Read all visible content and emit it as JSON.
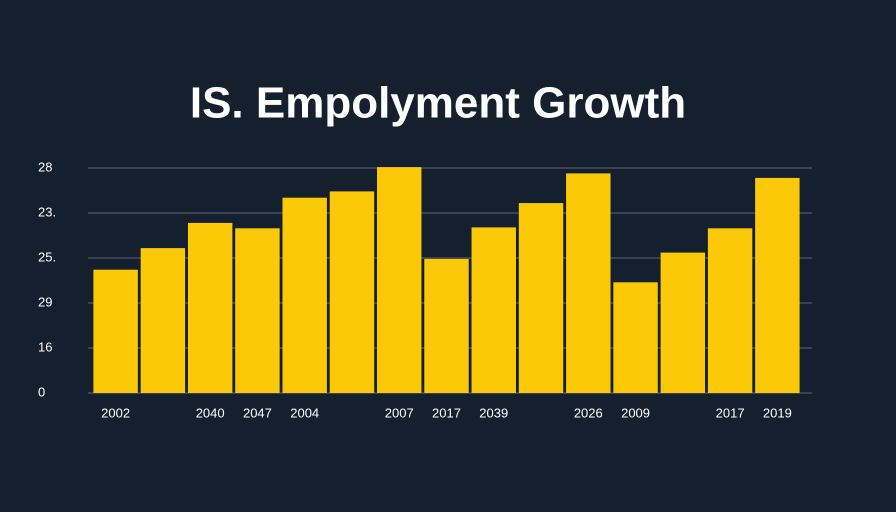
{
  "chart_data": {
    "type": "bar",
    "title": "IS. Empolyment Growth",
    "categories": [
      "2002",
      null,
      "2040",
      "2047",
      "2004",
      null,
      "2007",
      "2017",
      "2039",
      null,
      "2026",
      "2009",
      null,
      "2017",
      "2019"
    ],
    "values": [
      13.7,
      16.1,
      18.9,
      18.3,
      21.7,
      22.4,
      25.1,
      14.9,
      18.4,
      21.1,
      24.4,
      12.3,
      15.6,
      18.3,
      23.9
    ],
    "color": "#fcc908",
    "ylim": [
      0,
      25
    ],
    "yticks": [
      0,
      {
        "value": 5,
        "label": "16"
      },
      {
        "value": 10,
        "label": "29"
      },
      {
        "value": 15,
        "label": "25."
      },
      {
        "value": 20,
        "label": "23."
      },
      {
        "value": 25,
        "label": "28"
      }
    ],
    "grid": true
  }
}
